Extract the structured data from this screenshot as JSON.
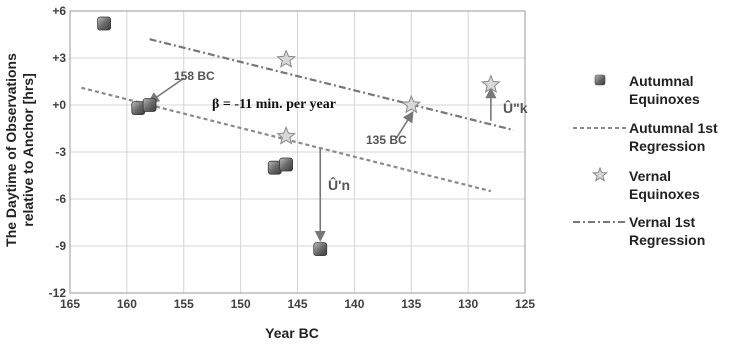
{
  "chart_data": {
    "type": "scatter",
    "xlabel": "Year BC",
    "ylabel": [
      "The Daytime of Observations",
      "relative to Anchor [hrs]"
    ],
    "xlim": [
      165,
      125
    ],
    "ylim": [
      -12,
      6
    ],
    "x_ticks": [
      165,
      160,
      155,
      150,
      145,
      140,
      135,
      130,
      125
    ],
    "y_ticks": [
      6,
      3,
      0,
      -3,
      -6,
      -9,
      -12
    ],
    "y_tick_labels": [
      "+6",
      "+3",
      "+0",
      "-3",
      "-6",
      "-9",
      "-12"
    ],
    "grid": true,
    "legend_position": "right",
    "series": [
      {
        "name": [
          "Autumnal",
          "Equinoxes"
        ],
        "kind": "points",
        "marker": "square",
        "color": "#6b6b6b",
        "points": [
          [
            162,
            5.2
          ],
          [
            159,
            -0.2
          ],
          [
            158,
            0.0
          ],
          [
            147,
            -4.0
          ],
          [
            146,
            -3.8
          ],
          [
            143,
            -9.2
          ]
        ]
      },
      {
        "name": [
          "Autumnal 1st",
          "Regression"
        ],
        "kind": "line",
        "dash": "dashed",
        "color": "#8a8a8a",
        "points": [
          [
            164,
            1.1
          ],
          [
            128,
            -5.5
          ]
        ]
      },
      {
        "name": [
          "Vernal",
          "Equinoxes"
        ],
        "kind": "points",
        "marker": "star",
        "color": "#aaaaaa",
        "points": [
          [
            146,
            2.9
          ],
          [
            146,
            -2.0
          ],
          [
            135,
            0.0
          ],
          [
            128,
            1.3
          ]
        ]
      },
      {
        "name": [
          "Vernal 1st",
          "Regression"
        ],
        "kind": "line",
        "dash": "dashdot",
        "color": "#777777",
        "points": [
          [
            158,
            4.2
          ],
          [
            126,
            -1.6
          ]
        ]
      }
    ],
    "annotations": {
      "beta": "β = -11 min. per year",
      "label_158": "158 BC",
      "label_135": "135 BC",
      "label_un": "Û'n",
      "label_uk": "Û\"k",
      "arrow_158": {
        "from": [
          155,
          1.7
        ],
        "to": [
          158,
          0.2
        ]
      },
      "arrow_135": {
        "from": [
          136.3,
          -2.1
        ],
        "to": [
          134.9,
          -0.5
        ]
      },
      "arrow_un": {
        "from": [
          143,
          -2.8
        ],
        "to": [
          143,
          -8.6
        ]
      },
      "arrow_uk": {
        "from": [
          128,
          -1.0
        ],
        "to": [
          128,
          1.0
        ]
      }
    }
  }
}
